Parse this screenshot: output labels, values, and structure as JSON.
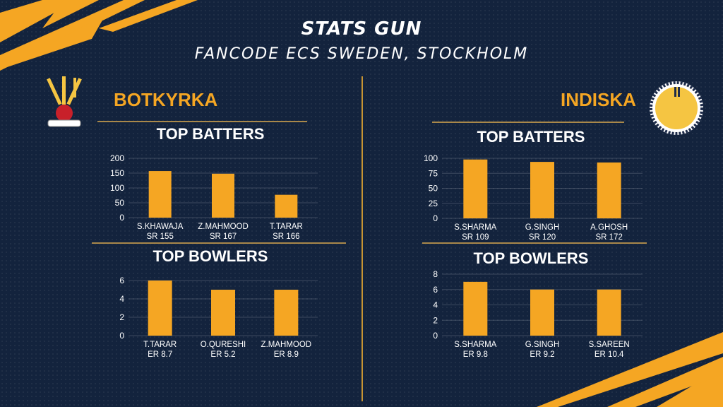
{
  "header": {
    "title": "STATS GUN",
    "subtitle": "FANCODE ECS SWEDEN, STOCKHOLM"
  },
  "colors": {
    "background": "#13233d",
    "accent": "#f5a623",
    "bar": "#f5a623",
    "divider": "#c79433"
  },
  "teams": {
    "left": {
      "name": "BOTKYRKA",
      "logo_icon": "cricket-bats-ball-icon"
    },
    "right": {
      "name": "INDISKA",
      "logo_icon": "indiska-cricket-club-badge-icon"
    }
  },
  "sections": {
    "left_batters": "TOP BATTERS",
    "left_bowlers": "TOP BOWLERS",
    "right_batters": "TOP BATTERS",
    "right_bowlers": "TOP BOWLERS"
  },
  "chart_data": [
    {
      "id": "left_batters",
      "type": "bar",
      "title": "TOP BATTERS",
      "categories": [
        "S.KHAWAJA",
        "Z.MAHMOOD",
        "T.TARAR"
      ],
      "sublabels": [
        "SR 155",
        "SR 167",
        "SR 166"
      ],
      "values": [
        157,
        148,
        77
      ],
      "ylim": [
        0,
        200
      ],
      "yticks": [
        0,
        50,
        100,
        150,
        200
      ],
      "grid": true
    },
    {
      "id": "left_bowlers",
      "type": "bar",
      "title": "TOP BOWLERS",
      "categories": [
        "T.TARAR",
        "O.QURESHI",
        "Z.MAHMOOD"
      ],
      "sublabels": [
        "ER 8.7",
        "ER 5.2",
        "ER 8.9"
      ],
      "values": [
        6,
        5,
        5
      ],
      "ylim": [
        0,
        6
      ],
      "yticks": [
        0,
        2,
        4,
        6
      ],
      "grid": true
    },
    {
      "id": "right_batters",
      "type": "bar",
      "title": "TOP BATTERS",
      "categories": [
        "S.SHARMA",
        "G.SINGH",
        "A.GHOSH"
      ],
      "sublabels": [
        "SR 109",
        "SR 120",
        "SR 172"
      ],
      "values": [
        98,
        94,
        93
      ],
      "ylim": [
        0,
        100
      ],
      "yticks": [
        0,
        25,
        50,
        75,
        100
      ],
      "grid": true
    },
    {
      "id": "right_bowlers",
      "type": "bar",
      "title": "TOP BOWLERS",
      "categories": [
        "S.SHARMA",
        "G.SINGH",
        "S.SAREEN"
      ],
      "sublabels": [
        "ER 9.8",
        "ER 9.2",
        "ER 10.4"
      ],
      "values": [
        7,
        6,
        6
      ],
      "ylim": [
        0,
        8
      ],
      "yticks": [
        0,
        2,
        4,
        6,
        8
      ],
      "grid": true
    }
  ]
}
